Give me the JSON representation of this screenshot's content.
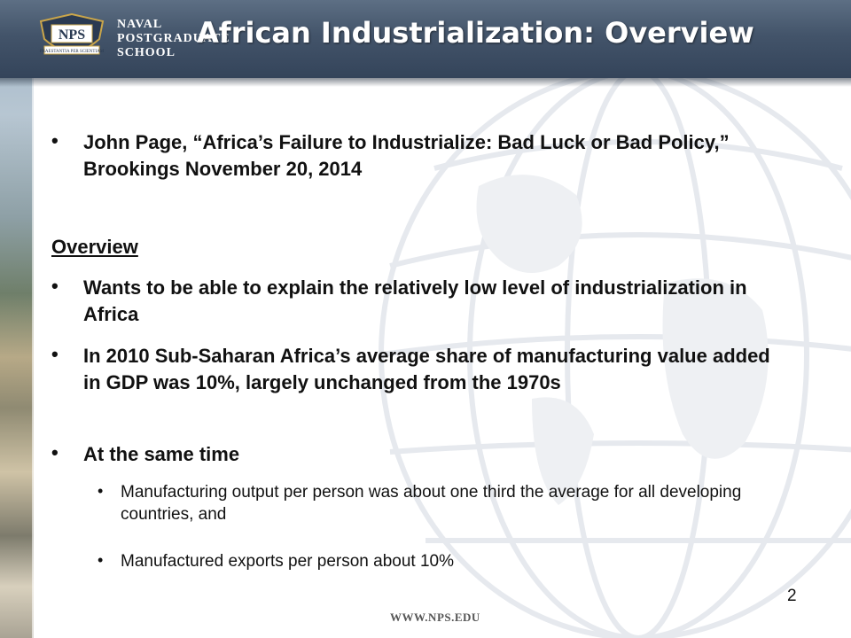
{
  "logo": {
    "monogram": "NPS",
    "motto": "PRAESTANTIA PER SCIENTIAM",
    "lines": [
      "NAVAL",
      "POSTGRADUATE",
      "SCHOOL"
    ]
  },
  "title": "African Industrialization: Overview",
  "bullets": [
    {
      "text": "John Page, “Africa’s Failure to Industrialize: Bad Luck or Bad Policy,” Brookings November 20, 2014"
    }
  ],
  "overview_heading": "Overview",
  "overview_bullets": [
    {
      "text": "Wants to be able to explain the relatively low level of industrialization in Africa"
    },
    {
      "text": "In 2010 Sub-Saharan Africa’s average share of manufacturing value added in GDP was 10%, largely unchanged from the 1970s"
    },
    {
      "text": "At the same time"
    }
  ],
  "sub_bullets": [
    {
      "text": "Manufacturing output per person was about one third the average for all developing countries, and"
    },
    {
      "text": "Manufactured exports per person about 10%"
    }
  ],
  "bullet_glyph": "•",
  "footer_url": "WWW.NPS.EDU",
  "page_number": "2",
  "colors": {
    "header_bar": "#43546a",
    "title_text": "#ffffff",
    "body_text": "#111111",
    "logo_gold": "#c9a54a"
  }
}
